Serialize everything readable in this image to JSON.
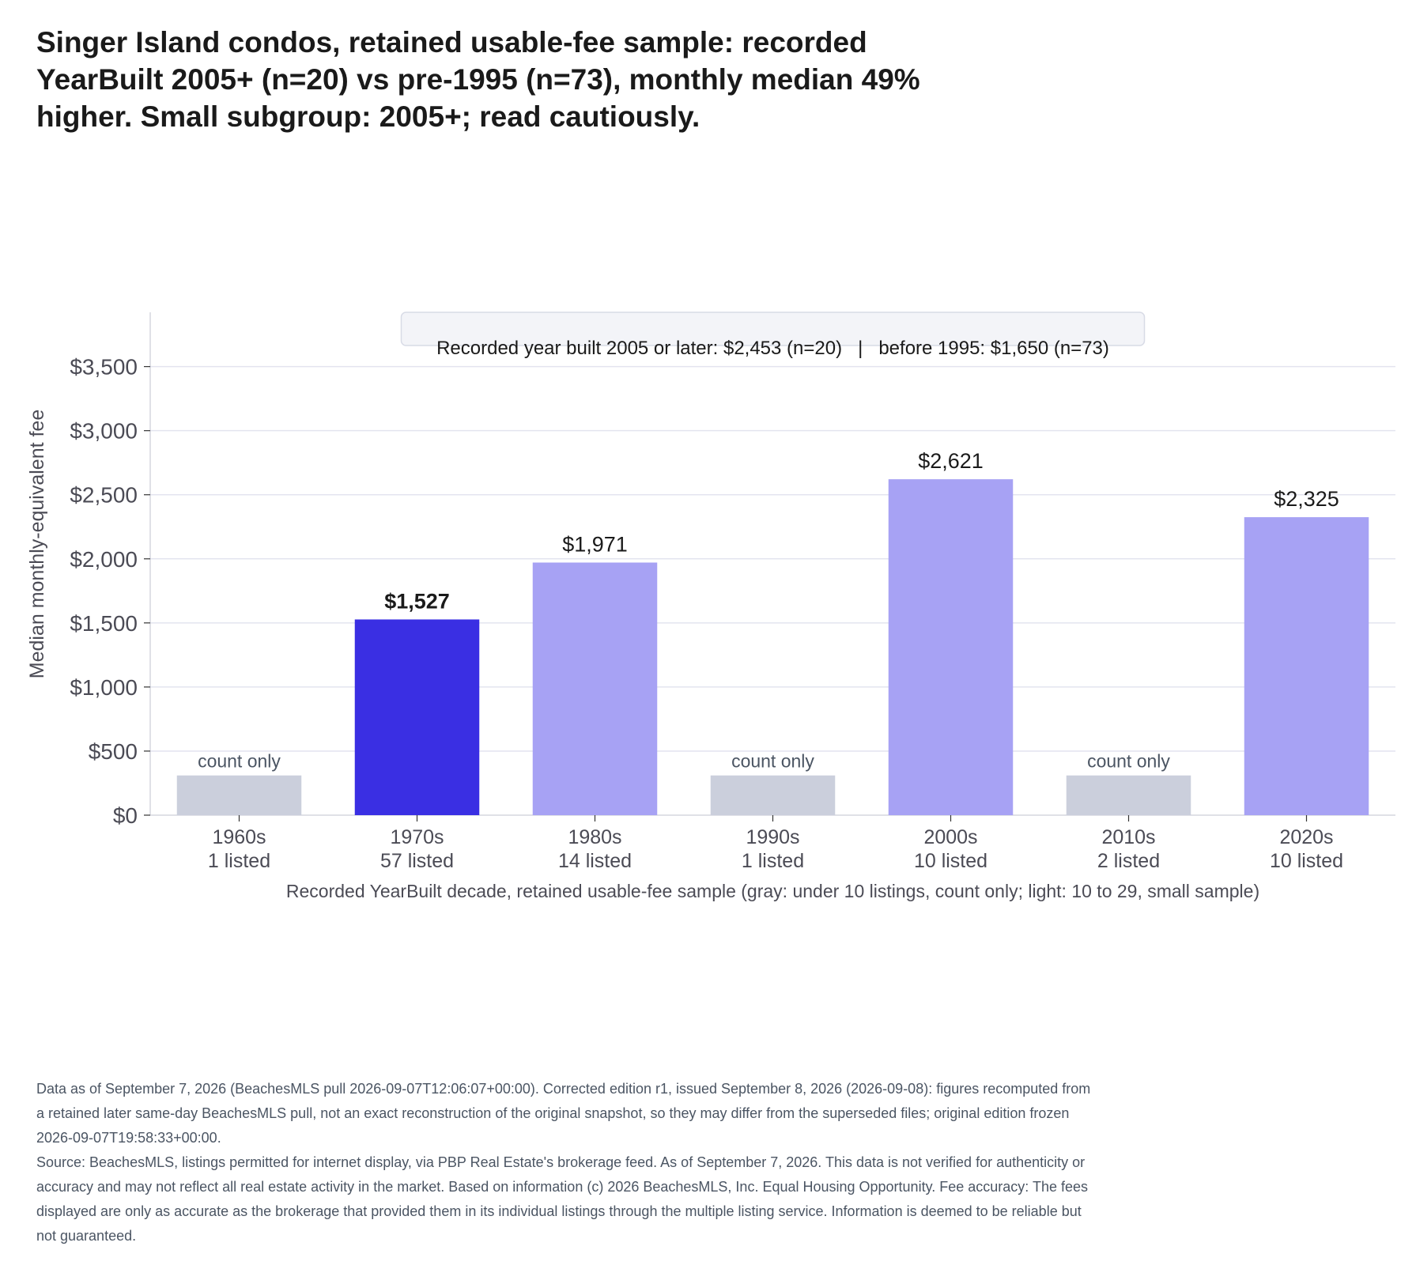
{
  "title": "Singer Island condos, retained usable-fee sample: recorded YearBuilt 2005+ (n=20) vs pre-1995 (n=73), monthly median 49% higher. Small subgroup: 2005+; read cautiously.",
  "colors": {
    "highlight": "#3a2fe3",
    "small_sample": "#a7a2f4",
    "count_only": "#cbcfdc",
    "grid": "#e3e4ef",
    "axis_text": "#4b4b55",
    "annotation_bg": "#f3f4f8",
    "annotation_border": "#d8dbe6"
  },
  "chart_data": {
    "type": "bar",
    "title": "",
    "xlabel": "Recorded YearBuilt decade, retained usable-fee sample (gray: under 10 listings, count only; light: 10 to 29, small sample)",
    "ylabel": "Median monthly-equivalent fee",
    "ylim": [
      0,
      3800
    ],
    "yticks": [
      0,
      500,
      1000,
      1500,
      2000,
      2500,
      3000,
      3500
    ],
    "ytick_labels": [
      "$0",
      "$500",
      "$1,000",
      "$1,500",
      "$2,000",
      "$2,500",
      "$3,000",
      "$3,500"
    ],
    "grid": true,
    "annotation": "Recorded year built 2005 or later: $2,453 (n=20)   |   before 1995: $1,650 (n=73)",
    "bars": [
      {
        "category": "1960s",
        "count_label": "1 listed",
        "value": null,
        "style": "count_only",
        "label": "count only"
      },
      {
        "category": "1970s",
        "count_label": "57 listed",
        "value": 1527,
        "style": "highlight",
        "label": "$1,527"
      },
      {
        "category": "1980s",
        "count_label": "14 listed",
        "value": 1971,
        "style": "small_sample",
        "label": "$1,971"
      },
      {
        "category": "1990s",
        "count_label": "1 listed",
        "value": null,
        "style": "count_only",
        "label": "count only"
      },
      {
        "category": "2000s",
        "count_label": "10 listed",
        "value": 2621,
        "style": "small_sample",
        "label": "$2,621"
      },
      {
        "category": "2010s",
        "count_label": "2 listed",
        "value": null,
        "style": "count_only",
        "label": "count only"
      },
      {
        "category": "2020s",
        "count_label": "10 listed",
        "value": 2325,
        "style": "small_sample",
        "label": "$2,325"
      }
    ],
    "count_only_placeholder_value": 310
  },
  "footer": {
    "edition_note": "Data as of September 7, 2026 (BeachesMLS pull 2026-09-07T12:06:07+00:00). Corrected edition r1, issued September 8, 2026 (2026-09-08): figures recomputed from a retained later same-day BeachesMLS pull, not an exact reconstruction of the original snapshot, so they may differ from the superseded files; original edition frozen 2026-09-07T19:58:33+00:00.",
    "source_note": "Source: BeachesMLS, listings permitted for internet display, via PBP Real Estate's brokerage feed. As of September 7, 2026. This data is not verified for authenticity or accuracy and may not reflect all real estate activity in the market. Based on information (c) 2026 BeachesMLS, Inc. Equal Housing Opportunity. Fee accuracy: The fees displayed are only as accurate as the brokerage that provided them in its individual listings through the multiple listing service. Information is deemed to be reliable but not guaranteed."
  }
}
